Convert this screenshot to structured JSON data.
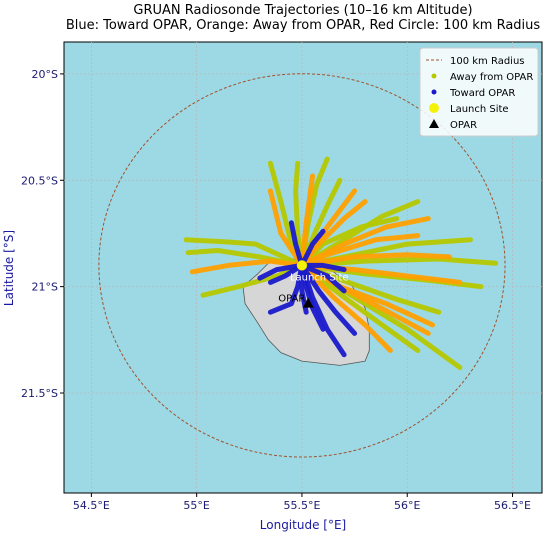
{
  "chart_data": {
    "type": "scatter",
    "title": "GRUAN Radiosonde Trajectories (10–16 km Altitude)",
    "subtitle": "Blue: Toward OPAR, Orange: Away from OPAR, Red Circle: 100 km Radius",
    "xlabel": "Longitude [°E]",
    "ylabel": "Latitude [°S]",
    "xlim": [
      54.37,
      56.64
    ],
    "ylim": [
      -21.97,
      -19.85
    ],
    "x_ticks": [
      54.5,
      55.0,
      55.5,
      56.0,
      56.5
    ],
    "x_tick_labels": [
      "54.5°E",
      "55°E",
      "55.5°E",
      "56°E",
      "56.5°E"
    ],
    "y_ticks": [
      -20.0,
      -20.5,
      -21.0,
      -21.5
    ],
    "y_tick_labels": [
      "20°S",
      "20.5°S",
      "21°S",
      "21.5°S"
    ],
    "grid": true,
    "legend_position": "top-right",
    "legend": [
      {
        "label": "100 km Radius",
        "kind": "dashed-line",
        "color": "#a0522d"
      },
      {
        "label": "Away from OPAR",
        "kind": "dot",
        "color": "#b5c800"
      },
      {
        "label": "Toward OPAR",
        "kind": "dot",
        "color": "#1a1acc"
      },
      {
        "label": "Launch Site",
        "kind": "big-dot",
        "color": "#f5f20a"
      },
      {
        "label": "OPAR",
        "kind": "triangle",
        "color": "#000000"
      }
    ],
    "launch_site": {
      "label": "Launch Site",
      "lon": 55.5,
      "lat": -20.9
    },
    "opar": {
      "label": "OPAR",
      "lon": 55.53,
      "lat": -21.08
    },
    "radius_circle": {
      "center_lon": 55.5,
      "center_lat": -20.9,
      "radius_km": 100
    },
    "island_outline": [
      [
        55.29,
        -20.94
      ],
      [
        55.35,
        -20.88
      ],
      [
        55.46,
        -20.87
      ],
      [
        55.56,
        -20.9
      ],
      [
        55.65,
        -20.93
      ],
      [
        55.74,
        -21.0
      ],
      [
        55.8,
        -21.1
      ],
      [
        55.82,
        -21.2
      ],
      [
        55.82,
        -21.3
      ],
      [
        55.8,
        -21.35
      ],
      [
        55.68,
        -21.37
      ],
      [
        55.5,
        -21.35
      ],
      [
        55.4,
        -21.31
      ],
      [
        55.34,
        -21.25
      ],
      [
        55.29,
        -21.17
      ],
      [
        55.23,
        -21.08
      ],
      [
        55.22,
        -21.0
      ],
      [
        55.29,
        -20.94
      ]
    ],
    "series": [
      {
        "name": "Away from OPAR",
        "color": "#b5c800",
        "tracks": [
          [
            [
              55.5,
              -20.9
            ],
            [
              55.28,
              -20.8
            ],
            [
              55.15,
              -20.79
            ],
            [
              54.95,
              -20.78
            ]
          ],
          [
            [
              55.5,
              -20.9
            ],
            [
              55.3,
              -20.86
            ],
            [
              55.1,
              -20.83
            ],
            [
              54.96,
              -20.84
            ]
          ],
          [
            [
              55.5,
              -20.9
            ],
            [
              55.38,
              -20.95
            ],
            [
              55.2,
              -21.0
            ],
            [
              55.03,
              -21.04
            ]
          ],
          [
            [
              55.5,
              -20.9
            ],
            [
              55.45,
              -20.8
            ],
            [
              55.4,
              -20.6
            ],
            [
              55.35,
              -20.42
            ]
          ],
          [
            [
              55.5,
              -20.9
            ],
            [
              55.48,
              -20.75
            ],
            [
              55.47,
              -20.55
            ],
            [
              55.48,
              -20.42
            ]
          ],
          [
            [
              55.5,
              -20.9
            ],
            [
              55.53,
              -20.7
            ],
            [
              55.57,
              -20.52
            ],
            [
              55.62,
              -20.4
            ]
          ],
          [
            [
              55.5,
              -20.9
            ],
            [
              55.56,
              -20.75
            ],
            [
              55.62,
              -20.62
            ],
            [
              55.68,
              -20.5
            ]
          ],
          [
            [
              55.5,
              -20.9
            ],
            [
              55.7,
              -20.78
            ],
            [
              55.88,
              -20.67
            ],
            [
              56.05,
              -20.6
            ]
          ],
          [
            [
              55.5,
              -20.9
            ],
            [
              55.7,
              -20.86
            ],
            [
              56.0,
              -20.8
            ],
            [
              56.3,
              -20.78
            ]
          ],
          [
            [
              55.5,
              -20.9
            ],
            [
              55.8,
              -20.88
            ],
            [
              56.15,
              -20.87
            ],
            [
              56.42,
              -20.89
            ]
          ],
          [
            [
              55.5,
              -20.9
            ],
            [
              55.8,
              -20.94
            ],
            [
              56.1,
              -20.97
            ],
            [
              56.35,
              -21.0
            ]
          ],
          [
            [
              55.5,
              -20.9
            ],
            [
              55.72,
              -20.98
            ],
            [
              55.95,
              -21.06
            ],
            [
              56.15,
              -21.12
            ]
          ],
          [
            [
              55.5,
              -20.9
            ],
            [
              55.75,
              -21.05
            ],
            [
              56.0,
              -21.2
            ],
            [
              56.25,
              -21.38
            ]
          ],
          [
            [
              55.5,
              -20.9
            ],
            [
              55.7,
              -21.05
            ],
            [
              55.88,
              -21.18
            ],
            [
              56.05,
              -21.3
            ]
          ],
          [
            [
              55.5,
              -20.9
            ],
            [
              55.6,
              -20.8
            ],
            [
              55.78,
              -20.72
            ],
            [
              55.95,
              -20.68
            ]
          ]
        ]
      },
      {
        "name": "Away (orange)",
        "color": "#ffa000",
        "tracks": [
          [
            [
              55.5,
              -20.9
            ],
            [
              55.35,
              -20.88
            ],
            [
              55.15,
              -20.9
            ],
            [
              54.98,
              -20.93
            ]
          ],
          [
            [
              55.5,
              -20.9
            ],
            [
              55.4,
              -20.75
            ],
            [
              55.35,
              -20.55
            ]
          ],
          [
            [
              55.5,
              -20.9
            ],
            [
              55.52,
              -20.7
            ],
            [
              55.55,
              -20.48
            ]
          ],
          [
            [
              55.5,
              -20.9
            ],
            [
              55.62,
              -20.72
            ],
            [
              55.75,
              -20.55
            ]
          ],
          [
            [
              55.5,
              -20.9
            ],
            [
              55.7,
              -20.8
            ],
            [
              55.9,
              -20.72
            ],
            [
              56.1,
              -20.68
            ]
          ],
          [
            [
              55.5,
              -20.9
            ],
            [
              55.75,
              -20.86
            ],
            [
              56.0,
              -20.85
            ],
            [
              56.2,
              -20.86
            ]
          ],
          [
            [
              55.5,
              -20.9
            ],
            [
              55.75,
              -20.92
            ],
            [
              56.0,
              -20.95
            ],
            [
              56.25,
              -20.98
            ]
          ],
          [
            [
              55.5,
              -20.9
            ],
            [
              55.72,
              -21.02
            ],
            [
              55.95,
              -21.14
            ],
            [
              56.1,
              -21.22
            ]
          ],
          [
            [
              55.5,
              -20.9
            ],
            [
              55.65,
              -21.05
            ],
            [
              55.8,
              -21.18
            ],
            [
              55.92,
              -21.3
            ]
          ],
          [
            [
              55.5,
              -20.9
            ],
            [
              55.62,
              -20.85
            ],
            [
              55.85,
              -20.78
            ],
            [
              56.05,
              -20.76
            ]
          ],
          [
            [
              55.5,
              -20.9
            ],
            [
              55.58,
              -20.8
            ],
            [
              55.7,
              -20.68
            ],
            [
              55.8,
              -20.6
            ]
          ],
          [
            [
              55.5,
              -20.9
            ],
            [
              55.68,
              -21.0
            ],
            [
              55.9,
              -21.08
            ],
            [
              56.12,
              -21.18
            ]
          ]
        ]
      },
      {
        "name": "Toward OPAR",
        "color": "#1a1acc",
        "tracks": [
          [
            [
              55.5,
              -20.9
            ],
            [
              55.48,
              -21.0
            ],
            [
              55.45,
              -21.08
            ],
            [
              55.35,
              -21.12
            ]
          ],
          [
            [
              55.5,
              -20.9
            ],
            [
              55.52,
              -21.0
            ],
            [
              55.55,
              -21.1
            ],
            [
              55.6,
              -21.2
            ]
          ],
          [
            [
              55.5,
              -20.9
            ],
            [
              55.55,
              -21.05
            ],
            [
              55.62,
              -21.2
            ],
            [
              55.7,
              -21.32
            ]
          ],
          [
            [
              55.5,
              -20.9
            ],
            [
              55.58,
              -21.02
            ],
            [
              55.66,
              -21.12
            ],
            [
              55.75,
              -21.22
            ]
          ],
          [
            [
              55.5,
              -20.9
            ],
            [
              55.42,
              -20.95
            ],
            [
              55.35,
              -20.98
            ]
          ],
          [
            [
              55.5,
              -20.9
            ],
            [
              55.47,
              -20.8
            ],
            [
              55.45,
              -20.7
            ]
          ],
          [
            [
              55.5,
              -20.9
            ],
            [
              55.55,
              -20.8
            ],
            [
              55.6,
              -20.74
            ]
          ],
          [
            [
              55.5,
              -20.9
            ],
            [
              55.62,
              -20.95
            ],
            [
              55.7,
              -21.02
            ]
          ],
          [
            [
              55.5,
              -20.9
            ],
            [
              55.6,
              -20.9
            ],
            [
              55.7,
              -20.92
            ]
          ],
          [
            [
              55.5,
              -20.9
            ],
            [
              55.5,
              -21.02
            ],
            [
              55.52,
              -21.12
            ]
          ],
          [
            [
              55.5,
              -20.9
            ],
            [
              55.38,
              -20.92
            ],
            [
              55.3,
              -20.96
            ]
          ]
        ]
      }
    ]
  }
}
